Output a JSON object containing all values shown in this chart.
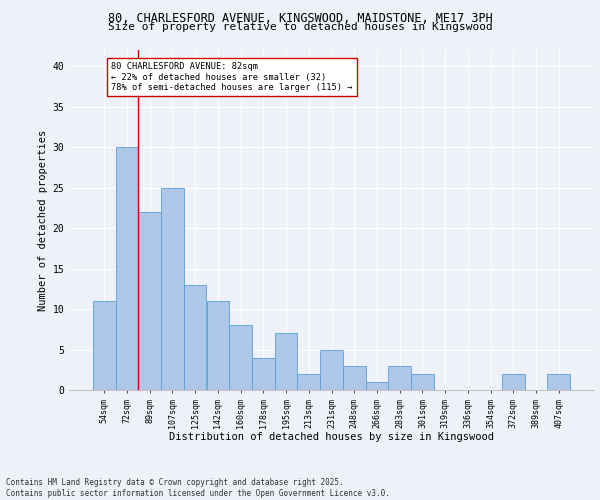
{
  "title1": "80, CHARLESFORD AVENUE, KINGSWOOD, MAIDSTONE, ME17 3PH",
  "title2": "Size of property relative to detached houses in Kingswood",
  "xlabel": "Distribution of detached houses by size in Kingswood",
  "ylabel": "Number of detached properties",
  "categories": [
    "54sqm",
    "72sqm",
    "89sqm",
    "107sqm",
    "125sqm",
    "142sqm",
    "160sqm",
    "178sqm",
    "195sqm",
    "213sqm",
    "231sqm",
    "248sqm",
    "266sqm",
    "283sqm",
    "301sqm",
    "319sqm",
    "336sqm",
    "354sqm",
    "372sqm",
    "389sqm",
    "407sqm"
  ],
  "values": [
    11,
    30,
    22,
    25,
    13,
    11,
    8,
    4,
    7,
    2,
    5,
    3,
    1,
    3,
    2,
    0,
    0,
    0,
    2,
    0,
    2
  ],
  "bar_color": "#aec6e8",
  "bar_edge_color": "#5a9fd4",
  "vline_x": 1.5,
  "vline_color": "#cc0000",
  "annotation_text": "80 CHARLESFORD AVENUE: 82sqm\n← 22% of detached houses are smaller (32)\n78% of semi-detached houses are larger (115) →",
  "annotation_box_color": "white",
  "annotation_box_edge_color": "#cc0000",
  "ylim": [
    0,
    42
  ],
  "yticks": [
    0,
    5,
    10,
    15,
    20,
    25,
    30,
    35,
    40
  ],
  "background_color": "#eef2f8",
  "plot_background": "#eef2f8",
  "grid_color": "#ffffff",
  "footnote": "Contains HM Land Registry data © Crown copyright and database right 2025.\nContains public sector information licensed under the Open Government Licence v3.0.",
  "title1_fontsize": 8.5,
  "title2_fontsize": 8.0,
  "annotation_fontsize": 6.2,
  "tick_fontsize": 6.0,
  "xlabel_fontsize": 7.5,
  "ylabel_fontsize": 7.5,
  "footnote_fontsize": 5.5
}
